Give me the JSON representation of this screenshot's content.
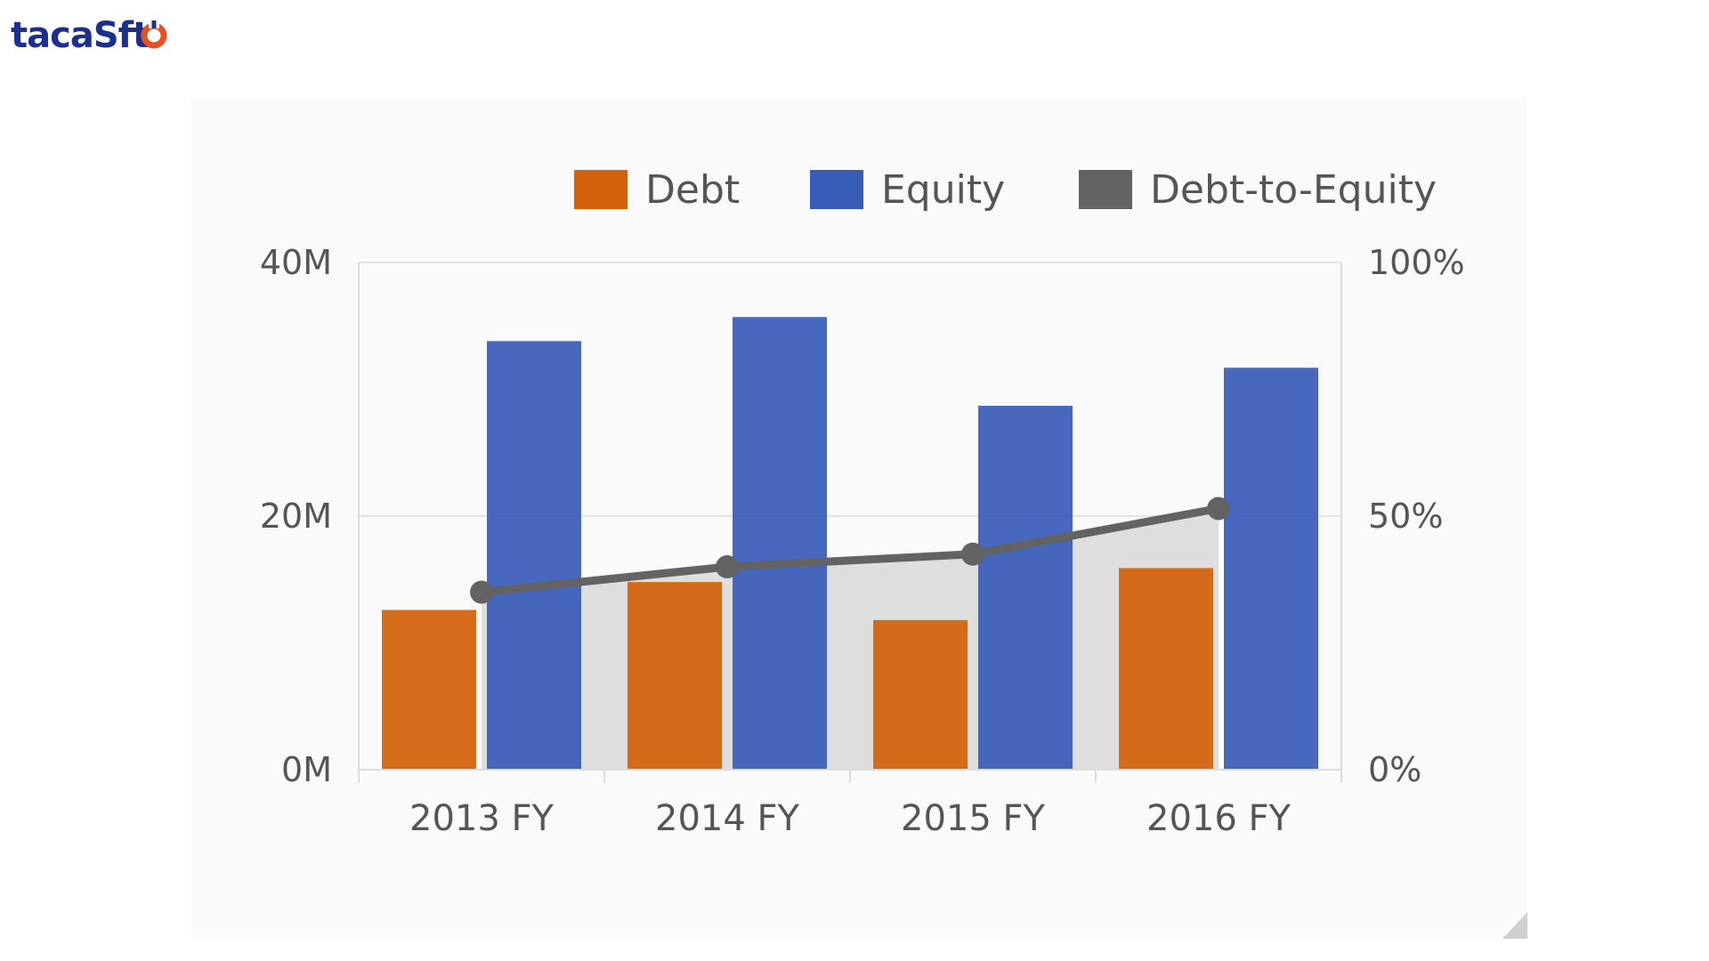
{
  "logo": {
    "text_prefix": "taca",
    "text_s": "S",
    "text_suffix": "ft",
    "colors": {
      "text": "#1b2f8f",
      "accent": "#e8501f"
    }
  },
  "chart_data": {
    "type": "bar",
    "categories": [
      "2013 FY",
      "2014 FY",
      "2015 FY",
      "2016 FY"
    ],
    "series": [
      {
        "name": "Debt",
        "type": "bar",
        "axis": "left",
        "color": "#d2620b",
        "values": [
          12.6,
          14.8,
          11.8,
          15.9
        ]
      },
      {
        "name": "Equity",
        "type": "bar",
        "axis": "left",
        "color": "#3a5cb9",
        "values": [
          33.8,
          35.7,
          28.7,
          31.7
        ]
      },
      {
        "name": "Debt-to-Equity",
        "type": "line",
        "axis": "right",
        "color": "#636363",
        "values": [
          35,
          40,
          42.5,
          51.5
        ]
      }
    ],
    "y_left": {
      "ticks": [
        "0M",
        "20M",
        "40M"
      ],
      "ylim": [
        0,
        40
      ]
    },
    "y_right": {
      "ticks": [
        "0%",
        "50%",
        "100%"
      ],
      "ylim": [
        0,
        100
      ]
    },
    "legend": {
      "placement": "top-right"
    },
    "grid": true,
    "area_fill_color": "#dedede"
  }
}
